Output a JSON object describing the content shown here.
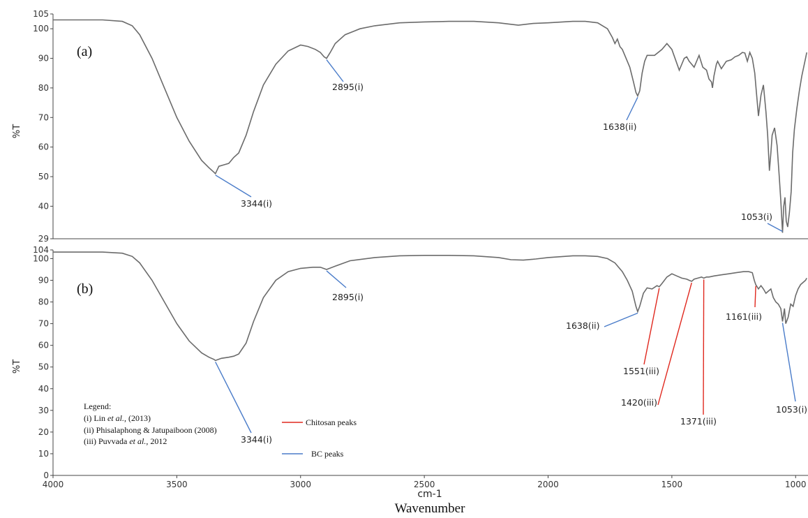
{
  "chart_data": [
    {
      "type": "line",
      "panel_label": "(a)",
      "ylabel": "%T",
      "ylim": [
        29,
        105
      ],
      "xlim": [
        4000,
        950
      ],
      "y_ticks": [
        "105",
        "100",
        "90",
        "80",
        "70",
        "60",
        "50",
        "40",
        "29"
      ],
      "series": [
        {
          "x": [
            4000,
            3900,
            3800,
            3720,
            3680,
            3650,
            3600,
            3550,
            3500,
            3450,
            3400,
            3370,
            3350,
            3344,
            3330,
            3310,
            3290,
            3270,
            3250,
            3220,
            3190,
            3150,
            3100,
            3050,
            3000,
            2970,
            2940,
            2920,
            2905,
            2895,
            2880,
            2860,
            2820,
            2760,
            2700,
            2600,
            2500,
            2400,
            2300,
            2200,
            2150,
            2120,
            2060,
            2000,
            1900,
            1850,
            1800,
            1760,
            1740,
            1730,
            1720,
            1710,
            1700,
            1690,
            1670,
            1655,
            1645,
            1638,
            1630,
            1620,
            1610,
            1600,
            1570,
            1540,
            1520,
            1500,
            1485,
            1470,
            1460,
            1450,
            1440,
            1430,
            1420,
            1410,
            1390,
            1375,
            1360,
            1350,
            1340,
            1336,
            1330,
            1320,
            1315,
            1300,
            1280,
            1260,
            1245,
            1230,
            1215,
            1205,
            1195,
            1185,
            1175,
            1165,
            1160,
            1150,
            1140,
            1130,
            1120,
            1113,
            1106,
            1100,
            1095,
            1085,
            1075,
            1066,
            1060,
            1053,
            1048,
            1043,
            1038,
            1032,
            1025,
            1018,
            1012,
            1005,
            995,
            985,
            975,
            965,
            960,
            955
          ],
          "y": [
            103,
            103,
            103,
            102.5,
            101,
            98,
            90,
            80,
            70,
            62,
            55.5,
            53,
            51.5,
            51,
            53.5,
            54,
            54.5,
            56.5,
            58,
            64,
            72,
            81,
            88,
            92.5,
            94.5,
            94,
            93,
            92,
            90.5,
            90,
            92,
            95,
            98,
            100,
            101,
            102,
            102.3,
            102.5,
            102.5,
            102,
            101.5,
            101.2,
            101.8,
            102,
            102.5,
            102.5,
            102,
            100,
            97,
            95,
            96.5,
            94,
            93,
            91,
            87,
            82,
            78.5,
            77.3,
            79,
            85,
            89,
            91,
            91,
            93,
            95,
            93,
            89.5,
            86,
            88,
            90,
            90.5,
            89,
            88,
            87,
            91,
            87,
            86,
            83,
            82,
            80,
            84,
            88,
            89,
            86.5,
            89,
            89.5,
            90.5,
            91,
            92,
            91.8,
            89,
            92,
            90,
            85,
            80,
            70.5,
            77.5,
            81,
            72,
            64,
            52,
            58,
            64,
            66.5,
            60.5,
            50,
            42,
            31,
            40,
            43,
            35,
            33,
            38,
            45,
            58,
            66,
            73,
            79,
            84,
            88,
            90,
            92
          ]
        }
      ],
      "annotations": [
        {
          "text": "3344(i)",
          "color": "#4a7cc9"
        },
        {
          "text": "2895(i)",
          "color": "#4a7cc9"
        },
        {
          "text": "1638(ii)",
          "color": "#4a7cc9"
        },
        {
          "text": "1053(i)",
          "color": "#4a7cc9"
        }
      ]
    },
    {
      "type": "line",
      "panel_label": "(b)",
      "ylabel": "%T",
      "ylim": [
        0,
        104
      ],
      "xlim": [
        4000,
        950
      ],
      "xlabel": "cm-1",
      "x_title": "Wavenumber",
      "x_ticks": [
        "4000",
        "3500",
        "3000",
        "2500",
        "2000",
        "1500",
        "1000"
      ],
      "y_ticks": [
        "104",
        "100",
        "90",
        "80",
        "70",
        "60",
        "50",
        "40",
        "30",
        "20",
        "10",
        "0"
      ],
      "series": [
        {
          "x": [
            4000,
            3900,
            3800,
            3720,
            3680,
            3650,
            3600,
            3550,
            3500,
            3450,
            3400,
            3370,
            3350,
            3344,
            3320,
            3290,
            3270,
            3250,
            3220,
            3190,
            3150,
            3100,
            3050,
            3000,
            2950,
            2920,
            2895,
            2860,
            2800,
            2700,
            2600,
            2500,
            2400,
            2300,
            2200,
            2150,
            2100,
            2050,
            2000,
            1900,
            1850,
            1800,
            1760,
            1730,
            1700,
            1680,
            1660,
            1645,
            1638,
            1630,
            1615,
            1600,
            1580,
            1560,
            1551,
            1540,
            1520,
            1500,
            1480,
            1460,
            1440,
            1430,
            1420,
            1410,
            1395,
            1380,
            1371,
            1360,
            1350,
            1330,
            1300,
            1270,
            1240,
            1210,
            1190,
            1175,
            1167,
            1161,
            1150,
            1140,
            1130,
            1120,
            1110,
            1100,
            1090,
            1080,
            1070,
            1060,
            1053,
            1045,
            1040,
            1030,
            1020,
            1010,
            1000,
            990,
            980,
            970,
            960,
            955
          ],
          "y": [
            103,
            103,
            103,
            102.5,
            101,
            98,
            90,
            80,
            70,
            62,
            56.5,
            54.5,
            53.5,
            53,
            54,
            54.5,
            55,
            56,
            61,
            71,
            82,
            90,
            94,
            95.5,
            96,
            96,
            95,
            96.5,
            99,
            100.5,
            101.3,
            101.5,
            101.5,
            101.3,
            100.5,
            99.5,
            99.3,
            99.8,
            100.5,
            101.3,
            101.3,
            101,
            100,
            98,
            94,
            90,
            85,
            78,
            75.5,
            78,
            84,
            86.5,
            86,
            87.5,
            87,
            88.5,
            91.5,
            93,
            92,
            91,
            90.5,
            90,
            89.5,
            90.5,
            91,
            91.5,
            91,
            91.5,
            91.5,
            92,
            92.5,
            93,
            93.5,
            94,
            94,
            93.5,
            90,
            88,
            86,
            87.5,
            86,
            84,
            85,
            86,
            82,
            80,
            79,
            77,
            71,
            77,
            70,
            73,
            79,
            78,
            83,
            86,
            88,
            89,
            90,
            91
          ]
        }
      ],
      "annotations": [
        {
          "text": "3344(i)",
          "color": "#4a7cc9"
        },
        {
          "text": "2895(i)",
          "color": "#4a7cc9"
        },
        {
          "text": "1638(ii)",
          "color": "#4a7cc9"
        },
        {
          "text": "1551(iii)",
          "color": "#e0281e"
        },
        {
          "text": "1420(iii)",
          "color": "#e0281e"
        },
        {
          "text": "1371(iii)",
          "color": "#e0281e"
        },
        {
          "text": "1161(iii)",
          "color": "#e0281e"
        },
        {
          "text": "1053(i)",
          "color": "#4a7cc9"
        }
      ],
      "legend": {
        "title": "Legend:",
        "refs": [
          {
            "num": "(i) Lin ",
            "italic": "et al.",
            "rest": ", (2013)"
          },
          {
            "num": "(ii) Phisalaphong & Jatupaiboon (2008)",
            "italic": "",
            "rest": ""
          },
          {
            "num": "(iii) Puvvada ",
            "italic": "et al.",
            "rest": ", 2012"
          }
        ],
        "series": [
          {
            "label": "Chitosan peaks",
            "color": "#e0281e"
          },
          {
            "label": "BC peaks",
            "color": "#4a7cc9"
          }
        ]
      }
    }
  ],
  "colors": {
    "spectrum": "#6b6b6b",
    "bc_peak": "#4a7cc9",
    "chitosan_peak": "#e0281e",
    "axis": "#444444"
  }
}
